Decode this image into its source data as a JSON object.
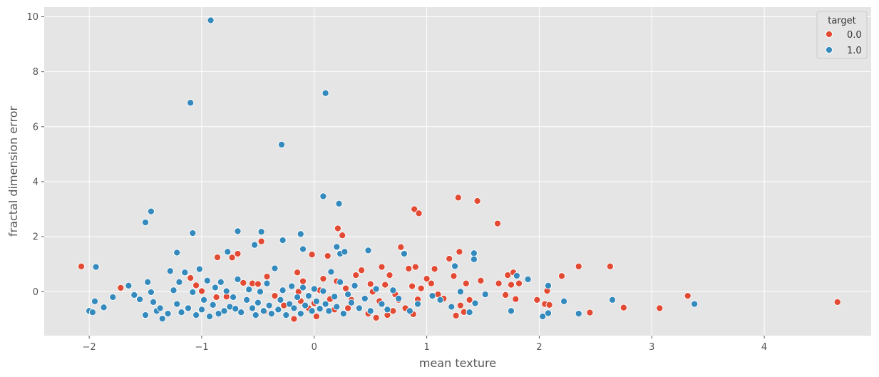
{
  "chart_data": {
    "type": "scatter",
    "xlabel": "mean texture",
    "ylabel": "fractal dimension error",
    "xlim": [
      -2.4,
      4.95
    ],
    "ylim": [
      -1.6,
      10.35
    ],
    "xticks": [
      -2,
      -1,
      0,
      1,
      2,
      3,
      4
    ],
    "yticks": [
      0,
      2,
      4,
      6,
      8,
      10
    ],
    "grid": true,
    "legend": {
      "title": "target",
      "placement": "top-right"
    },
    "series": [
      {
        "name": "0.0",
        "color": "#E24A33",
        "points": [
          [
            -2.07,
            0.92
          ],
          [
            -1.72,
            0.14
          ],
          [
            -1.1,
            0.5
          ],
          [
            -1.05,
            0.23
          ],
          [
            -1.0,
            0.02
          ],
          [
            -0.87,
            -0.2
          ],
          [
            -0.86,
            1.25
          ],
          [
            -0.78,
            -0.18
          ],
          [
            -0.73,
            1.24
          ],
          [
            -0.68,
            1.38
          ],
          [
            -0.63,
            0.32
          ],
          [
            -0.55,
            0.3
          ],
          [
            -0.5,
            0.28
          ],
          [
            -0.47,
            1.83
          ],
          [
            -0.44,
            -0.72
          ],
          [
            -0.42,
            0.55
          ],
          [
            -0.35,
            -0.15
          ],
          [
            -0.27,
            -0.5
          ],
          [
            -0.18,
            -0.99
          ],
          [
            -0.15,
            0.7
          ],
          [
            -0.14,
            0.0
          ],
          [
            -0.12,
            -0.34
          ],
          [
            -0.1,
            0.38
          ],
          [
            -0.05,
            -0.6
          ],
          [
            -0.02,
            1.35
          ],
          [
            0.0,
            -0.42
          ],
          [
            0.02,
            -0.9
          ],
          [
            0.05,
            0.05
          ],
          [
            0.08,
            0.47
          ],
          [
            0.12,
            1.3
          ],
          [
            0.14,
            -0.27
          ],
          [
            0.18,
            -0.65
          ],
          [
            0.2,
            0.38
          ],
          [
            0.21,
            2.3
          ],
          [
            0.25,
            2.05
          ],
          [
            0.28,
            0.12
          ],
          [
            0.3,
            -0.6
          ],
          [
            0.33,
            -0.3
          ],
          [
            0.37,
            0.6
          ],
          [
            0.42,
            0.78
          ],
          [
            0.48,
            -0.8
          ],
          [
            0.5,
            0.28
          ],
          [
            0.52,
            0.0
          ],
          [
            0.55,
            -0.95
          ],
          [
            0.58,
            -0.34
          ],
          [
            0.6,
            0.9
          ],
          [
            0.63,
            0.25
          ],
          [
            0.65,
            -0.85
          ],
          [
            0.67,
            0.6
          ],
          [
            0.7,
            -0.7
          ],
          [
            0.72,
            -0.1
          ],
          [
            0.75,
            -0.3
          ],
          [
            0.77,
            1.62
          ],
          [
            0.81,
            -0.6
          ],
          [
            0.84,
            0.84
          ],
          [
            0.87,
            0.2
          ],
          [
            0.88,
            -0.82
          ],
          [
            0.89,
            3.0
          ],
          [
            0.9,
            0.9
          ],
          [
            0.92,
            -0.28
          ],
          [
            0.93,
            2.85
          ],
          [
            0.95,
            0.12
          ],
          [
            1.0,
            0.47
          ],
          [
            1.04,
            0.3
          ],
          [
            1.07,
            0.83
          ],
          [
            1.1,
            -0.1
          ],
          [
            1.15,
            -0.25
          ],
          [
            1.2,
            1.2
          ],
          [
            1.24,
            0.57
          ],
          [
            1.26,
            -0.87
          ],
          [
            1.28,
            3.42
          ],
          [
            1.29,
            1.45
          ],
          [
            1.3,
            -0.5
          ],
          [
            1.33,
            -0.74
          ],
          [
            1.35,
            0.3
          ],
          [
            1.38,
            -0.3
          ],
          [
            1.45,
            3.3
          ],
          [
            1.48,
            0.4
          ],
          [
            1.63,
            2.48
          ],
          [
            1.64,
            0.3
          ],
          [
            1.7,
            -0.12
          ],
          [
            1.72,
            0.6
          ],
          [
            1.75,
            0.25
          ],
          [
            1.77,
            0.7
          ],
          [
            1.79,
            -0.27
          ],
          [
            1.82,
            0.3
          ],
          [
            1.98,
            -0.3
          ],
          [
            2.05,
            -0.45
          ],
          [
            2.07,
            0.03
          ],
          [
            2.09,
            -0.48
          ],
          [
            2.2,
            0.57
          ],
          [
            2.35,
            0.92
          ],
          [
            2.45,
            -0.76
          ],
          [
            2.63,
            0.92
          ],
          [
            2.75,
            -0.58
          ],
          [
            3.07,
            -0.6
          ],
          [
            3.32,
            -0.15
          ],
          [
            4.65,
            -0.38
          ]
        ]
      },
      {
        "name": "1.0",
        "color": "#348ABD",
        "points": [
          [
            -2.0,
            -0.7
          ],
          [
            -1.97,
            -0.75
          ],
          [
            -1.95,
            -0.35
          ],
          [
            -1.94,
            0.9
          ],
          [
            -1.87,
            -0.57
          ],
          [
            -1.79,
            -0.2
          ],
          [
            -1.65,
            0.22
          ],
          [
            -1.6,
            -0.12
          ],
          [
            -1.55,
            -0.28
          ],
          [
            -1.5,
            -0.85
          ],
          [
            -1.48,
            0.35
          ],
          [
            -1.45,
            -0.02
          ],
          [
            -1.43,
            -0.38
          ],
          [
            -1.4,
            -0.7
          ],
          [
            -1.37,
            -0.6
          ],
          [
            -1.35,
            -0.98
          ],
          [
            -1.3,
            -0.8
          ],
          [
            -1.28,
            0.75
          ],
          [
            -1.25,
            0.05
          ],
          [
            -1.22,
            -0.45
          ],
          [
            -1.2,
            0.35
          ],
          [
            -1.18,
            -0.75
          ],
          [
            -1.15,
            0.7
          ],
          [
            -1.12,
            -0.6
          ],
          [
            -1.08,
            -0.02
          ],
          [
            -1.05,
            -0.85
          ],
          [
            -1.02,
            0.82
          ],
          [
            -1.0,
            -0.65
          ],
          [
            -0.98,
            -0.3
          ],
          [
            -0.95,
            0.4
          ],
          [
            -0.93,
            -0.9
          ],
          [
            -0.9,
            -0.48
          ],
          [
            -0.88,
            0.15
          ],
          [
            -0.85,
            -0.8
          ],
          [
            -0.83,
            0.35
          ],
          [
            -0.8,
            -0.7
          ],
          [
            -0.78,
            0.02
          ],
          [
            -0.75,
            -0.55
          ],
          [
            -0.72,
            -0.2
          ],
          [
            -0.7,
            -0.62
          ],
          [
            -0.68,
            0.45
          ],
          [
            -0.65,
            -0.75
          ],
          [
            -0.6,
            -0.3
          ],
          [
            -0.58,
            0.08
          ],
          [
            -0.55,
            -0.6
          ],
          [
            -0.52,
            -0.85
          ],
          [
            -0.5,
            -0.4
          ],
          [
            -0.48,
            0.0
          ],
          [
            -0.45,
            -0.7
          ],
          [
            -0.42,
            0.3
          ],
          [
            -0.4,
            -0.5
          ],
          [
            -0.38,
            -0.8
          ],
          [
            -0.35,
            0.85
          ],
          [
            -0.32,
            -0.65
          ],
          [
            -0.3,
            -0.3
          ],
          [
            -0.28,
            0.05
          ],
          [
            -0.25,
            -0.85
          ],
          [
            -0.22,
            -0.45
          ],
          [
            -0.2,
            0.2
          ],
          [
            -0.18,
            -0.6
          ],
          [
            -0.15,
            -0.2
          ],
          [
            -0.12,
            -0.8
          ],
          [
            -0.1,
            0.15
          ],
          [
            -0.08,
            -0.5
          ],
          [
            -0.05,
            -0.15
          ],
          [
            -0.02,
            -0.7
          ],
          [
            0.0,
            0.1
          ],
          [
            0.02,
            -0.35
          ],
          [
            0.05,
            -0.62
          ],
          [
            0.08,
            0.02
          ],
          [
            0.1,
            -0.45
          ],
          [
            0.13,
            -0.7
          ],
          [
            0.15,
            0.72
          ],
          [
            0.18,
            -0.18
          ],
          [
            0.2,
            -0.55
          ],
          [
            0.23,
            0.35
          ],
          [
            0.26,
            -0.8
          ],
          [
            0.3,
            -0.1
          ],
          [
            0.33,
            -0.4
          ],
          [
            0.36,
            0.22
          ],
          [
            0.4,
            -0.6
          ],
          [
            0.45,
            -0.25
          ],
          [
            0.5,
            -0.7
          ],
          [
            0.55,
            0.1
          ],
          [
            0.6,
            -0.45
          ],
          [
            0.65,
            -0.65
          ],
          [
            0.7,
            0.05
          ],
          [
            0.75,
            -0.25
          ],
          [
            0.85,
            -0.7
          ],
          [
            0.92,
            -0.45
          ],
          [
            1.05,
            -0.15
          ],
          [
            1.12,
            -0.3
          ],
          [
            1.22,
            -0.55
          ],
          [
            1.3,
            0.0
          ],
          [
            1.38,
            -0.75
          ],
          [
            1.43,
            -0.42
          ],
          [
            1.75,
            -0.7
          ],
          [
            1.8,
            0.58
          ],
          [
            2.03,
            -0.9
          ],
          [
            2.08,
            -0.78
          ],
          [
            2.35,
            -0.8
          ],
          [
            2.65,
            -0.3
          ],
          [
            3.38,
            -0.45
          ],
          [
            -1.1,
            6.87
          ],
          [
            -0.92,
            9.87
          ],
          [
            -0.29,
            5.35
          ],
          [
            0.1,
            7.22
          ],
          [
            0.08,
            3.47
          ],
          [
            0.22,
            3.2
          ],
          [
            -1.45,
            2.92
          ],
          [
            -1.5,
            2.52
          ],
          [
            -1.08,
            2.13
          ],
          [
            -0.68,
            2.2
          ],
          [
            -0.47,
            2.18
          ],
          [
            -0.12,
            2.1
          ],
          [
            -1.22,
            1.42
          ],
          [
            -0.77,
            1.45
          ],
          [
            -0.53,
            1.7
          ],
          [
            -0.28,
            1.87
          ],
          [
            -0.1,
            1.55
          ],
          [
            0.2,
            1.63
          ],
          [
            0.23,
            1.38
          ],
          [
            0.27,
            1.45
          ],
          [
            0.48,
            1.5
          ],
          [
            0.8,
            1.38
          ],
          [
            1.25,
            0.93
          ],
          [
            1.42,
            1.4
          ],
          [
            1.42,
            1.18
          ],
          [
            1.52,
            -0.1
          ],
          [
            1.9,
            0.45
          ],
          [
            2.08,
            0.22
          ],
          [
            2.22,
            -0.35
          ]
        ]
      }
    ]
  }
}
